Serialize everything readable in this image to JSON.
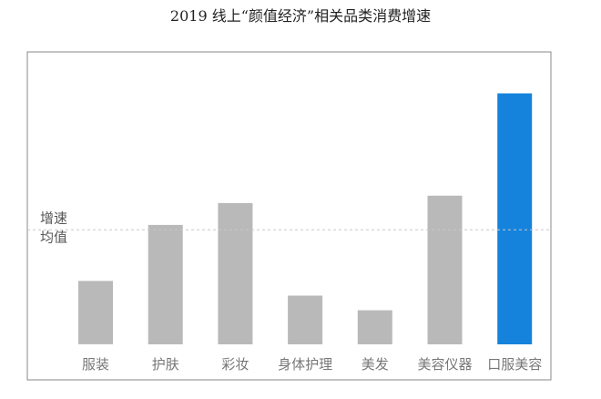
{
  "chart_data": {
    "type": "bar",
    "title": "2019 线上“颜值经济”相关品类消费增速",
    "categories": [
      "服装",
      "护肤",
      "彩妆",
      "身体护理",
      "美发",
      "美容仪器",
      "口服美容"
    ],
    "values": [
      26,
      49,
      58,
      20,
      14,
      61,
      103
    ],
    "ylim": [
      0,
      120
    ],
    "y_tick_labels_shown": false,
    "grid": false,
    "reference_line": {
      "label_line1": "增速",
      "label_line2": "均值",
      "value": 47,
      "style": "dashed"
    },
    "bar_color": "#b8b9b8",
    "highlight_color": "#1583dc",
    "highlight_category": "口服美容",
    "legend": "none"
  }
}
